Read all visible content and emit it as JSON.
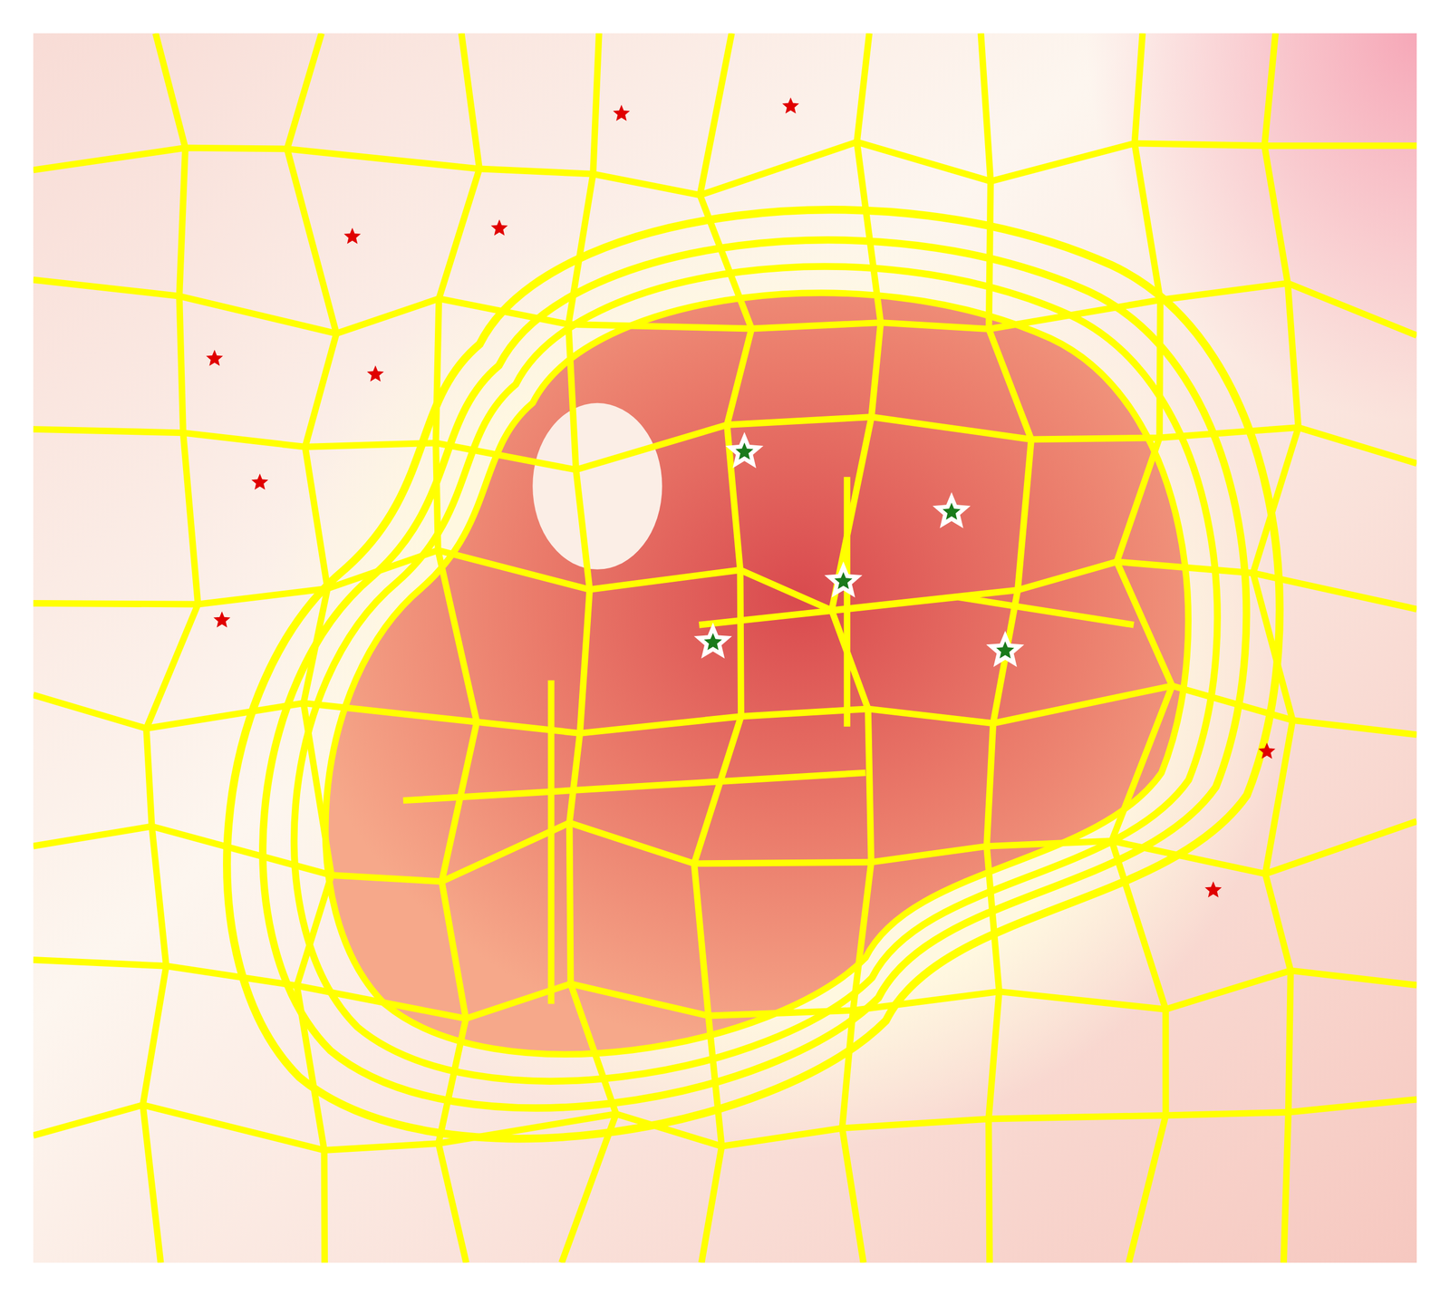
{
  "chart_data": {
    "type": "scatter",
    "xlim": [
      0,
      1496
    ],
    "ylim": [
      0,
      1330
    ],
    "tick_labels": false,
    "grid": false,
    "series": [
      {
        "color": "#1a7a1a",
        "marker": "outlined_star",
        "x": [
          769,
          993,
          876,
          735,
          1051
        ],
        "values": [
          453,
          518,
          593,
          659,
          668
        ]
      },
      {
        "color": "#e00000",
        "marker": "star",
        "x": [
          636,
          819,
          345,
          504,
          196,
          370,
          245,
          204,
          1334,
          1276
        ],
        "values": [
          87,
          79,
          220,
          211,
          352,
          369,
          486,
          635,
          777,
          927
        ]
      }
    ]
  }
}
